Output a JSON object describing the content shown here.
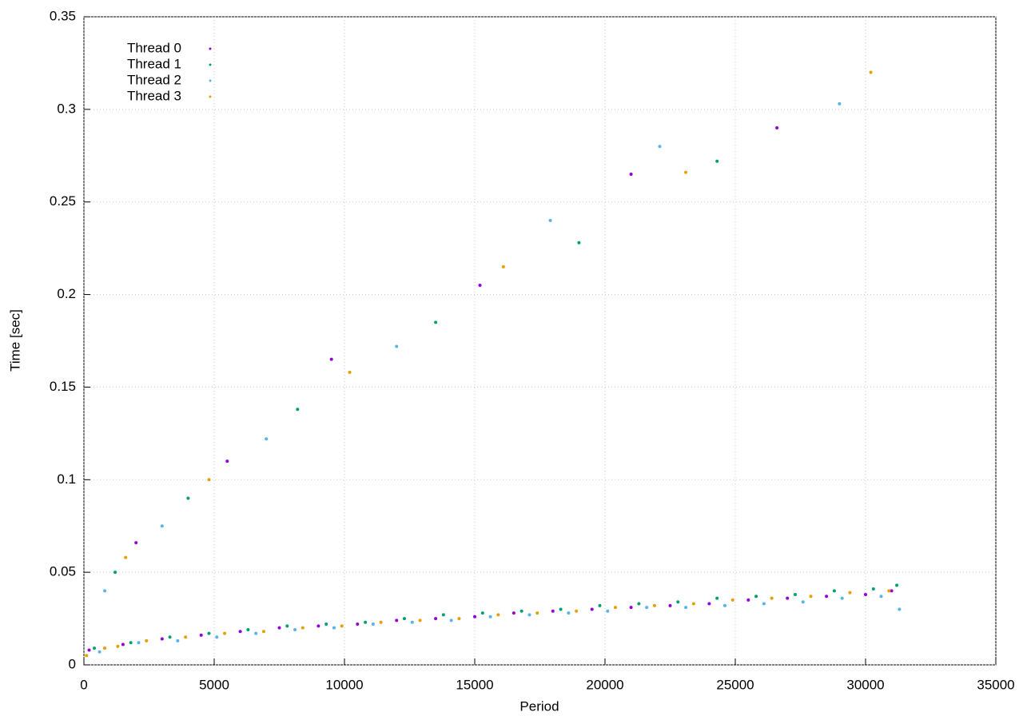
{
  "chart_data": {
    "type": "scatter",
    "x_label": "Period",
    "y_label": "Time [sec]",
    "xlim": [
      0,
      35000
    ],
    "ylim": [
      0,
      0.35
    ],
    "xticks": [
      0,
      5000,
      10000,
      15000,
      20000,
      25000,
      30000,
      35000
    ],
    "yticks": [
      0,
      0.05,
      0.1,
      0.15,
      0.2,
      0.25,
      0.3,
      0.35
    ],
    "grid": true,
    "legend": "top-left",
    "series": [
      {
        "name": "Thread 0",
        "color": "#9400d3",
        "x": [
          200,
          1500,
          3000,
          4500,
          6000,
          7500,
          9000,
          10500,
          12000,
          13500,
          15000,
          16500,
          18000,
          19500,
          21000,
          22500,
          24000,
          25500,
          27000,
          28500,
          30000,
          31000,
          2000,
          5500,
          9500,
          15200,
          21000,
          26600
        ],
        "values": [
          0.008,
          0.011,
          0.014,
          0.016,
          0.018,
          0.02,
          0.021,
          0.022,
          0.024,
          0.025,
          0.026,
          0.028,
          0.029,
          0.03,
          0.031,
          0.032,
          0.033,
          0.035,
          0.036,
          0.037,
          0.038,
          0.04,
          0.066,
          0.11,
          0.165,
          0.205,
          0.265,
          0.29
        ]
      },
      {
        "name": "Thread 1",
        "color": "#009e73",
        "x": [
          400,
          1800,
          3300,
          4800,
          6300,
          7800,
          9300,
          10800,
          12300,
          13800,
          15300,
          16800,
          18300,
          19800,
          21300,
          22800,
          24300,
          25800,
          27300,
          28800,
          30300,
          31200,
          1200,
          4000,
          8200,
          13500,
          19000,
          24300
        ],
        "values": [
          0.009,
          0.012,
          0.015,
          0.017,
          0.019,
          0.021,
          0.022,
          0.023,
          0.025,
          0.027,
          0.028,
          0.029,
          0.03,
          0.032,
          0.033,
          0.034,
          0.036,
          0.037,
          0.038,
          0.04,
          0.041,
          0.043,
          0.05,
          0.09,
          0.138,
          0.185,
          0.228,
          0.272
        ]
      },
      {
        "name": "Thread 2",
        "color": "#56b4e9",
        "x": [
          600,
          2100,
          3600,
          5100,
          6600,
          8100,
          9600,
          11100,
          12600,
          14100,
          15600,
          17100,
          18600,
          20100,
          21600,
          23100,
          24600,
          26100,
          27600,
          29100,
          30600,
          31300,
          800,
          3000,
          7000,
          12000,
          17900,
          22100,
          29000
        ],
        "values": [
          0.007,
          0.012,
          0.013,
          0.015,
          0.017,
          0.019,
          0.02,
          0.022,
          0.023,
          0.024,
          0.026,
          0.027,
          0.028,
          0.029,
          0.031,
          0.031,
          0.032,
          0.033,
          0.034,
          0.036,
          0.037,
          0.03,
          0.04,
          0.075,
          0.122,
          0.172,
          0.24,
          0.28,
          0.303
        ]
      },
      {
        "name": "Thread 3",
        "color": "#e69f00",
        "x": [
          100,
          800,
          1300,
          2400,
          3900,
          5400,
          6900,
          8400,
          9900,
          11400,
          12900,
          14400,
          15900,
          17400,
          18900,
          20400,
          21900,
          23400,
          24900,
          26400,
          27900,
          29400,
          30900,
          1600,
          4800,
          10200,
          16100,
          23100,
          30200
        ],
        "values": [
          0.005,
          0.009,
          0.01,
          0.013,
          0.015,
          0.017,
          0.018,
          0.02,
          0.021,
          0.023,
          0.024,
          0.025,
          0.027,
          0.028,
          0.029,
          0.031,
          0.032,
          0.033,
          0.035,
          0.036,
          0.037,
          0.039,
          0.04,
          0.058,
          0.1,
          0.158,
          0.215,
          0.266,
          0.32
        ]
      }
    ]
  }
}
